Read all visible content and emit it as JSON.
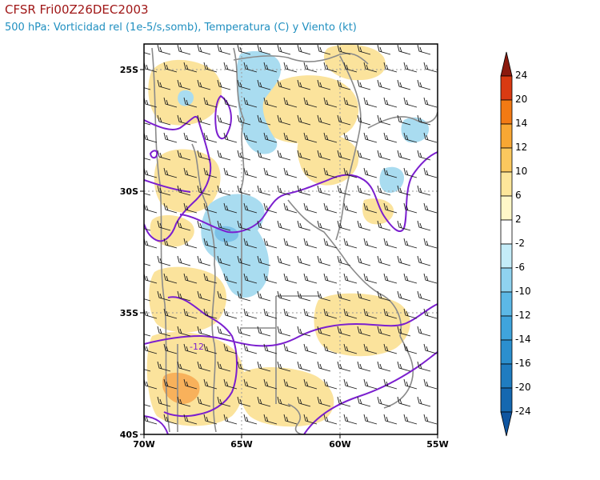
{
  "header": {
    "title": "CFSR Fri00Z26DEC2003",
    "subtitle": "500 hPa: Vorticidad rel (1e-5/s,somb), Temperatura (C) y Viento (kt)"
  },
  "map": {
    "lat_labels": [
      "25S",
      "30S",
      "35S",
      "40S"
    ],
    "lon_labels": [
      "70W",
      "65W",
      "60W",
      "55W"
    ],
    "lat_range": [
      -40,
      -24
    ],
    "lon_range": [
      -70,
      -55
    ],
    "contour_label": "-12"
  },
  "colorbar": {
    "labels": [
      "24",
      "20",
      "14",
      "12",
      "10",
      "6",
      "2",
      "-2",
      "-6",
      "-10",
      "-12",
      "-14",
      "-16",
      "-20",
      "-24"
    ],
    "colors": [
      "#8b1a0e",
      "#d93a12",
      "#f27a14",
      "#f8a733",
      "#fbc85e",
      "#fde69a",
      "#fff7c8",
      "#ffffff",
      "#c4ecf8",
      "#8fd2ef",
      "#5cb8e6",
      "#3fa4dc",
      "#2b8fce",
      "#1f7cc0",
      "#1568b0",
      "#0f55a0"
    ]
  },
  "colors": {
    "positive_vorticity": "#fbe39c",
    "negative_vorticity": "#a9dcf0",
    "temperature_contour": "#7b1fcf",
    "coastline": "#8a8a8a"
  }
}
